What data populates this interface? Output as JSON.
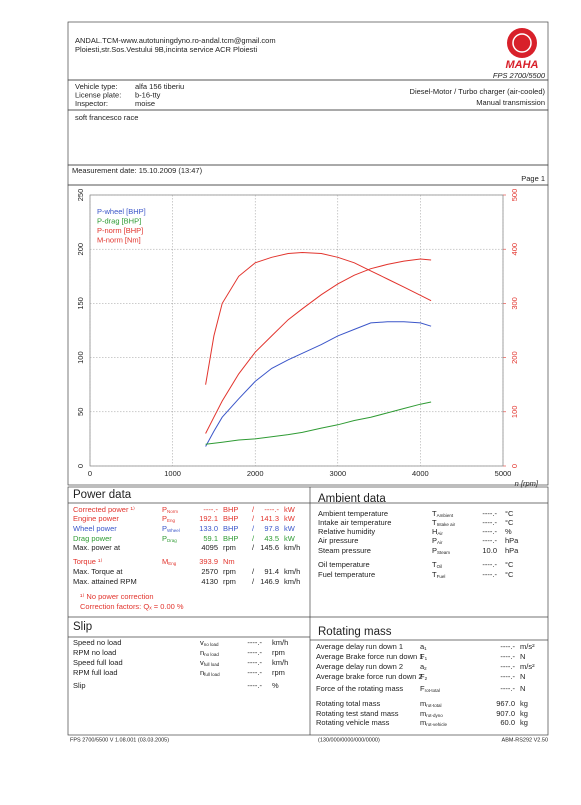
{
  "header": {
    "company": "ANDAL.TCM-www.autotuningdyno.ro-andal.tcm@gmail.com",
    "address": "Ploiesti,str.Sos.Vestului 9B,incinta service ACR Ploiesti",
    "logo": "MAHA",
    "model": "FPS 2700/5500"
  },
  "vehicle": {
    "rows": [
      [
        "Vehicle type:",
        "alfa 156 tiberiu"
      ],
      [
        "License plate:",
        "b-16-tty"
      ],
      [
        "Inspector:",
        "moise"
      ]
    ],
    "engine": "Diesel-Motor / Turbo charger (air-cooled)",
    "transmission": "Manual transmission",
    "note": "soft francesco race"
  },
  "measurement": {
    "date": "Measurement date: 15.10.2009 (13:47)",
    "page": "Page 1"
  },
  "chart_data": {
    "type": "line",
    "x": [
      1400,
      1500,
      1600,
      1800,
      2000,
      2200,
      2400,
      2570,
      2800,
      3000,
      3200,
      3400,
      3600,
      3800,
      4000,
      4130
    ],
    "series": [
      {
        "name": "P-wheel [BHP]",
        "color": "#3b56c9",
        "values": [
          18,
          32,
          45,
          62,
          78,
          90,
          98,
          104,
          112,
          120,
          126,
          132,
          133,
          133,
          132,
          129
        ]
      },
      {
        "name": "P-drag [BHP]",
        "color": "#2f9b34",
        "values": [
          20,
          21,
          22,
          24,
          25,
          27,
          29,
          31,
          35,
          38,
          42,
          45,
          49,
          53,
          57,
          59
        ]
      },
      {
        "name": "P-norm [BHP]",
        "color": "#e2342d",
        "values": [
          30,
          45,
          60,
          85,
          105,
          120,
          135,
          145,
          158,
          168,
          176,
          182,
          186,
          189,
          191,
          190
        ]
      },
      {
        "name": "M-norm [Nm]",
        "color": "#e2342d",
        "axis": "y2",
        "values": [
          150,
          240,
          300,
          350,
          375,
          385,
          392,
          394,
          392,
          385,
          375,
          360,
          345,
          330,
          315,
          305
        ]
      }
    ],
    "xlabel": "n [rpm]",
    "xlim": [
      0,
      5000
    ],
    "xticks": [
      0,
      1000,
      2000,
      3000,
      4000,
      5000
    ],
    "ylim": [
      0,
      250
    ],
    "yticks": [
      0,
      50,
      100,
      150,
      200,
      250
    ],
    "y2lim": [
      0,
      500
    ],
    "y2ticks": [
      0,
      100,
      200,
      300,
      400,
      500
    ],
    "grid": true,
    "legend": "upper left"
  },
  "power_data": {
    "title": "Power data",
    "rows": [
      {
        "label": "Corrected power ¹⁾",
        "sym": "P",
        "sub": "Norm",
        "v1": "----.-",
        "u1": "BHP",
        "sep": "/",
        "v2": "----.-",
        "u2": "kW",
        "color": "#e2342d"
      },
      {
        "label": "Engine power",
        "sym": "P",
        "sub": "Eng",
        "v1": "192.1",
        "u1": "BHP",
        "sep": "/",
        "v2": "141.3",
        "u2": "kW",
        "color": "#e2342d"
      },
      {
        "label": "Wheel power",
        "sym": "P",
        "sub": "Wheel",
        "v1": "133.0",
        "u1": "BHP",
        "sep": "/",
        "v2": "97.8",
        "u2": "kW",
        "color": "#3b56c9"
      },
      {
        "label": "Drag power",
        "sym": "P",
        "sub": "Drag",
        "v1": "59.1",
        "u1": "BHP",
        "sep": "/",
        "v2": "43.5",
        "u2": "kW",
        "color": "#2f9b34"
      },
      {
        "label": "Max. power at",
        "v1": "4095",
        "u1": "rpm",
        "sep": "/",
        "v2": "145.6",
        "u2": "km/h"
      },
      {
        "label": "Torque ¹⁾",
        "sym": "M",
        "sub": "Eng",
        "v1": "393.9",
        "u1": "Nm",
        "color": "#e2342d"
      },
      {
        "label": "Max. Torque at",
        "v1": "2570",
        "u1": "rpm",
        "sep": "/",
        "v2": "91.4",
        "u2": "km/h"
      },
      {
        "label": "Max. attained RPM",
        "v1": "4130",
        "u1": "rpm",
        "sep": "/",
        "v2": "146.9",
        "u2": "km/h"
      }
    ],
    "footnote": "¹⁾ No power correction",
    "correction": "Correction factors: Qₓ =  0.00 %"
  },
  "ambient_data": {
    "title": "Ambient data",
    "rows": [
      {
        "label": "Ambient temperature",
        "sym": "T",
        "sub": "Ambient",
        "v1": "----.-",
        "u1": "°C"
      },
      {
        "label": "Intake air temperature",
        "sym": "T",
        "sub": "Intake air",
        "v1": "----.-",
        "u1": "°C"
      },
      {
        "label": "Relative humidity",
        "sym": "H",
        "sub": "Air",
        "v1": "----.-",
        "u1": "%"
      },
      {
        "label": "Air pressure",
        "sym": "P",
        "sub": "Air",
        "v1": "----.-",
        "u1": "hPa"
      },
      {
        "label": "Steam pressure",
        "sym": "P",
        "sub": "Steam",
        "v1": "10.0",
        "u1": "hPa"
      },
      {
        "label": "Oil temperature",
        "sym": "T",
        "sub": "Oil",
        "v1": "----.-",
        "u1": "°C"
      },
      {
        "label": "Fuel temperature",
        "sym": "T",
        "sub": "Fuel",
        "v1": "----.-",
        "u1": "°C"
      }
    ]
  },
  "slip": {
    "title": "Slip",
    "rows": [
      {
        "label": "Speed no load",
        "sym": "v",
        "sub": "no load",
        "v1": "----.-",
        "u1": "km/h"
      },
      {
        "label": "RPM no load",
        "sym": "n",
        "sub": "no load",
        "v1": "----.-",
        "u1": "rpm"
      },
      {
        "label": "Speed full load",
        "sym": "v",
        "sub": "full load",
        "v1": "----.-",
        "u1": "km/h"
      },
      {
        "label": "RPM full load",
        "sym": "n",
        "sub": "full load",
        "v1": "----.-",
        "u1": "rpm"
      },
      {
        "label": "Slip",
        "v1": "----.-",
        "u1": "%"
      }
    ]
  },
  "rotating_mass": {
    "title": "Rotating mass",
    "rows": [
      {
        "label": "Average delay run down 1",
        "sym": "a",
        "sub": "1",
        "v1": "----.-",
        "u1": "m/s²"
      },
      {
        "label": "Average Brake force run down 1",
        "sym": "F",
        "sub": "1",
        "v1": "----.-",
        "u1": "N"
      },
      {
        "label": "Average delay run down 2",
        "sym": "a",
        "sub": "2",
        "v1": "----.-",
        "u1": "m/s²"
      },
      {
        "label": "Average brake force run down 2",
        "sym": "F",
        "sub": "2",
        "v1": "----.-",
        "u1": "N"
      },
      {
        "label": "Force of the rotating mass",
        "sym": "F",
        "sub": "rot-total",
        "v1": "----.-",
        "u1": "N"
      },
      {
        "label": "Rotating total mass",
        "sym": "m",
        "sub": "rot-total",
        "v1": "967.0",
        "u1": "kg"
      },
      {
        "label": "Rotating test stand mass",
        "sym": "m",
        "sub": "rot-dyno",
        "v1": "907.0",
        "u1": "kg"
      },
      {
        "label": "Rotating vehicle mass",
        "sym": "m",
        "sub": "rot-vehicle",
        "v1": "60.0",
        "u1": "kg"
      }
    ]
  },
  "footer": {
    "version": "FPS 2700/5500 V 1.08.001 (03.03.2005)",
    "code": "(130/000/0000/000/0000)",
    "build": "ABM-RS292 V2.50"
  }
}
